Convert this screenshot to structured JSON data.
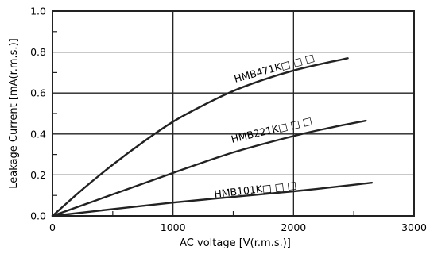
{
  "chart_data": {
    "type": "line",
    "xlabel": "AC voltage [V(r.m.s.)]",
    "ylabel": "Leakage Current [mA(r.m.s.)]",
    "xlim": [
      0,
      3000
    ],
    "ylim": [
      0,
      1.0
    ],
    "x_ticks": [
      "0",
      "1000",
      "2000",
      "3000"
    ],
    "y_ticks": [
      "0.0",
      "0.2",
      "0.4",
      "0.6",
      "0.8",
      "1.0"
    ],
    "grid": true,
    "series": [
      {
        "name": "HMB471K□ □ □",
        "x": [
          0,
          250,
          500,
          750,
          1000,
          1250,
          1500,
          1750,
          2000,
          2250,
          2450
        ],
        "y": [
          0,
          0.13,
          0.25,
          0.36,
          0.46,
          0.54,
          0.61,
          0.665,
          0.71,
          0.745,
          0.77
        ]
      },
      {
        "name": "HMB221K□ □ □",
        "x": [
          0,
          500,
          1000,
          1500,
          2000,
          2300,
          2600
        ],
        "y": [
          0,
          0.105,
          0.21,
          0.31,
          0.39,
          0.43,
          0.465
        ]
      },
      {
        "name": "HMB101K□ □ □",
        "x": [
          0,
          1000,
          2000,
          2650
        ],
        "y": [
          0,
          0.065,
          0.12,
          0.162
        ]
      }
    ]
  }
}
